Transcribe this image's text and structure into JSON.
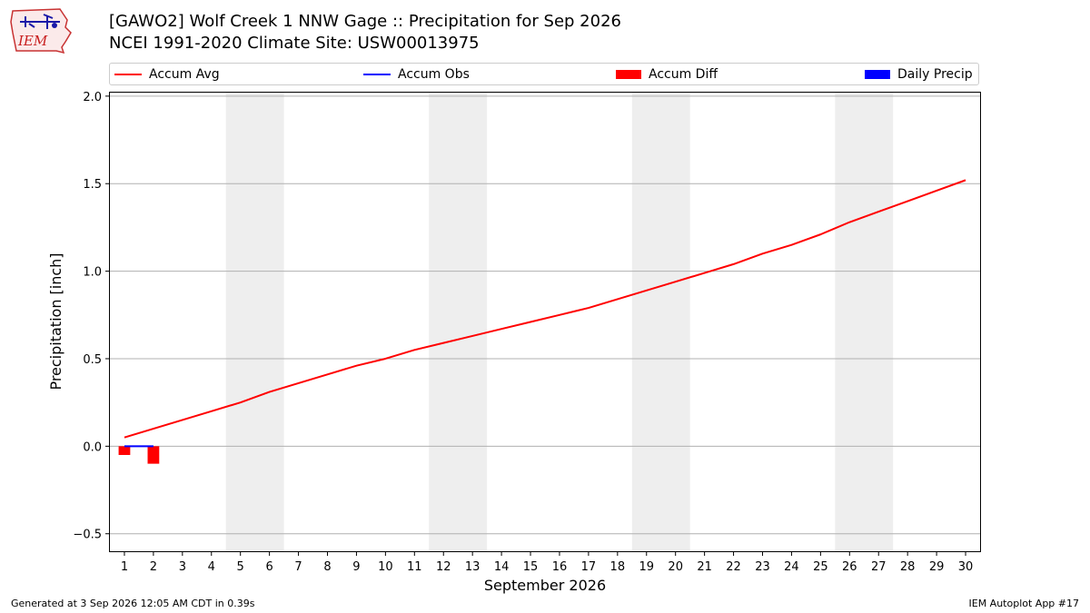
{
  "logo": {
    "text": "IEM"
  },
  "title": {
    "line1": "[GAWO2] Wolf Creek 1 NNW Gage :: Precipitation for Sep 2026",
    "line2": "NCEI 1991-2020 Climate Site: USW00013975"
  },
  "footer": {
    "left": "Generated at 3 Sep 2026 12:05 AM CDT in 0.39s",
    "right": "IEM Autoplot App #17"
  },
  "colors": {
    "avg": "#ff0000",
    "obs": "#0000ff",
    "diff": "#ff0000",
    "daily": "#0000ff",
    "weekend": "#eeeeee",
    "grid": "#b0b0b0"
  },
  "chart_data": {
    "type": "line",
    "xlabel": "September 2026",
    "ylabel": "Precipitation [inch]",
    "xlim": [
      0.5,
      30.5
    ],
    "ylim": [
      -0.6,
      2.02
    ],
    "yticks": [
      -0.5,
      0.0,
      0.5,
      1.0,
      1.5,
      2.0
    ],
    "ytick_labels": [
      "−0.5",
      "0.0",
      "0.5",
      "1.0",
      "1.5",
      "2.0"
    ],
    "x": [
      1,
      2,
      3,
      4,
      5,
      6,
      7,
      8,
      9,
      10,
      11,
      12,
      13,
      14,
      15,
      16,
      17,
      18,
      19,
      20,
      21,
      22,
      23,
      24,
      25,
      26,
      27,
      28,
      29,
      30
    ],
    "xtick_labels": [
      "1",
      "2",
      "3",
      "4",
      "5",
      "6",
      "7",
      "8",
      "9",
      "10",
      "11",
      "12",
      "13",
      "14",
      "15",
      "16",
      "17",
      "18",
      "19",
      "20",
      "21",
      "22",
      "23",
      "24",
      "25",
      "26",
      "27",
      "28",
      "29",
      "30"
    ],
    "weekend_spans": [
      [
        4.5,
        6.5
      ],
      [
        11.5,
        13.5
      ],
      [
        18.5,
        20.5
      ],
      [
        25.5,
        27.5
      ]
    ],
    "grid": "y",
    "legend_placement": "top",
    "series": [
      {
        "name": "Accum Avg",
        "kind": "line",
        "x": [
          1,
          2,
          3,
          4,
          5,
          6,
          7,
          8,
          9,
          10,
          11,
          12,
          13,
          14,
          15,
          16,
          17,
          18,
          19,
          20,
          21,
          22,
          23,
          24,
          25,
          26,
          27,
          28,
          29,
          30
        ],
        "values": [
          0.05,
          0.1,
          0.15,
          0.2,
          0.25,
          0.31,
          0.36,
          0.41,
          0.46,
          0.5,
          0.55,
          0.59,
          0.63,
          0.67,
          0.71,
          0.75,
          0.79,
          0.84,
          0.89,
          0.94,
          0.99,
          1.04,
          1.1,
          1.15,
          1.21,
          1.28,
          1.34,
          1.4,
          1.46,
          1.52
        ]
      },
      {
        "name": "Accum Obs",
        "kind": "line",
        "x": [
          1,
          2
        ],
        "values": [
          0.0,
          0.0
        ]
      },
      {
        "name": "Accum Diff",
        "kind": "bar",
        "x": [
          1,
          2
        ],
        "values": [
          -0.05,
          -0.1
        ]
      },
      {
        "name": "Daily Precip",
        "kind": "bar",
        "x": [
          1,
          2
        ],
        "values": [
          0.0,
          0.0
        ]
      }
    ]
  }
}
